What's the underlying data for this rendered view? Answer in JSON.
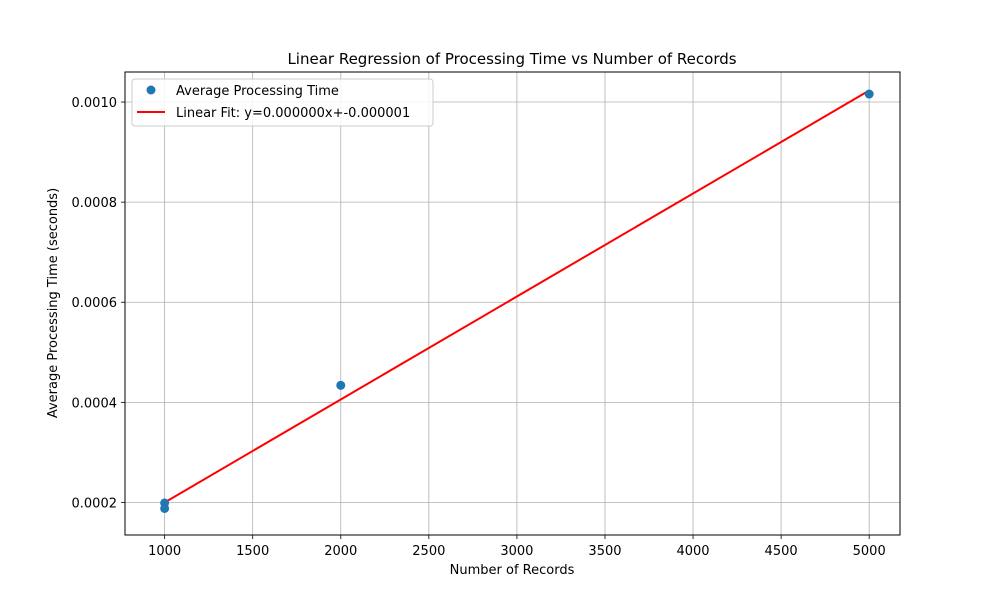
{
  "chart_data": {
    "type": "scatter",
    "title": "Linear Regression of Processing Time vs Number of Records",
    "xlabel": "Number of Records",
    "ylabel": "Average Processing Time (seconds)",
    "xlim": [
      775,
      5175
    ],
    "ylim": [
      0.000135,
      0.00106
    ],
    "xticks": [
      1000,
      1500,
      2000,
      2500,
      3000,
      3500,
      4000,
      4500,
      5000
    ],
    "xtick_labels": [
      "1000",
      "1500",
      "2000",
      "2500",
      "3000",
      "3500",
      "4000",
      "4500",
      "5000"
    ],
    "yticks": [
      0.0002,
      0.0004,
      0.0006,
      0.0008,
      0.001
    ],
    "ytick_labels": [
      "0.0002",
      "0.0004",
      "0.0006",
      "0.0008",
      "0.0010"
    ],
    "grid": true,
    "legend_position": "top-left",
    "series": [
      {
        "name": "Average Processing Time",
        "kind": "scatter",
        "color": "#1f77b4",
        "x": [
          1000,
          1000,
          2000,
          5000
        ],
        "y": [
          0.000199,
          0.000188,
          0.000434,
          0.001016
        ]
      },
      {
        "name": "Linear Fit: y=0.000000x+-0.000001",
        "kind": "line",
        "color": "#ff0000",
        "x": [
          1000,
          5000
        ],
        "y": [
          0.0002,
          0.001023
        ]
      }
    ]
  }
}
